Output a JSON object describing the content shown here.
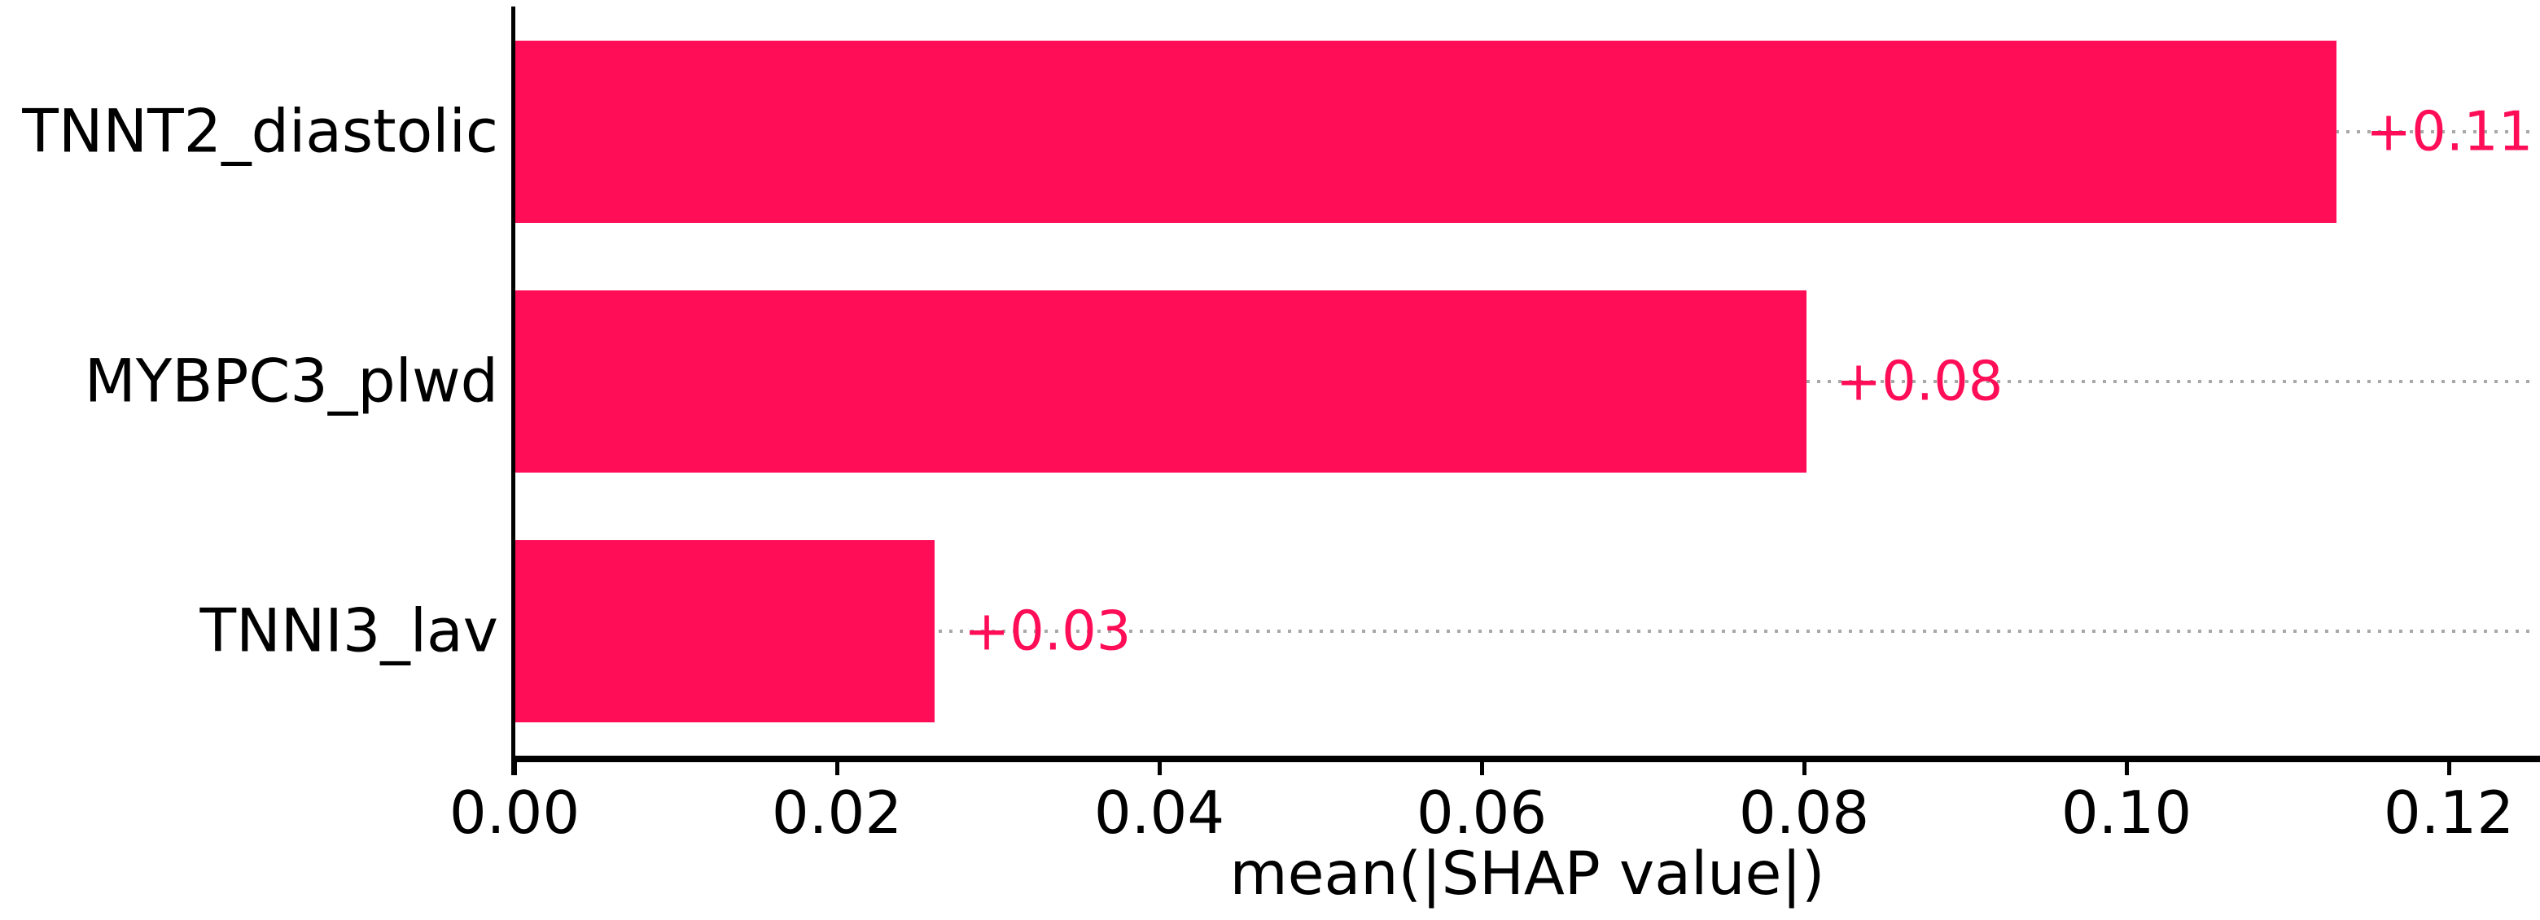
{
  "chart_data": {
    "type": "bar",
    "orientation": "horizontal",
    "categories": [
      "TNNT2_diastolic",
      "MYBPC3_plwd",
      "TNNI3_lav"
    ],
    "values": [
      0.113,
      0.0801,
      0.026
    ],
    "bar_value_labels": [
      "+0.11",
      "+0.08",
      "+0.03"
    ],
    "xlabel": "mean(|SHAP value|)",
    "x_tick_labels": [
      "0.00",
      "0.02",
      "0.04",
      "0.06",
      "0.08",
      "0.10",
      "0.12"
    ],
    "x_tick_values": [
      0.0,
      0.02,
      0.04,
      0.06,
      0.08,
      0.1,
      0.12
    ],
    "xlim": [
      0,
      0.1254
    ],
    "grid": "dotted horizontal guide line at each bar center, to right edge",
    "legend_position": "none",
    "colors": {
      "bar_fill": "#ff0d57",
      "value_label_text": "#ff0d57",
      "axis_text": "#000000",
      "spine": "#000000",
      "gridline_dots": "#a8a8a8",
      "background": "#ffffff"
    }
  }
}
